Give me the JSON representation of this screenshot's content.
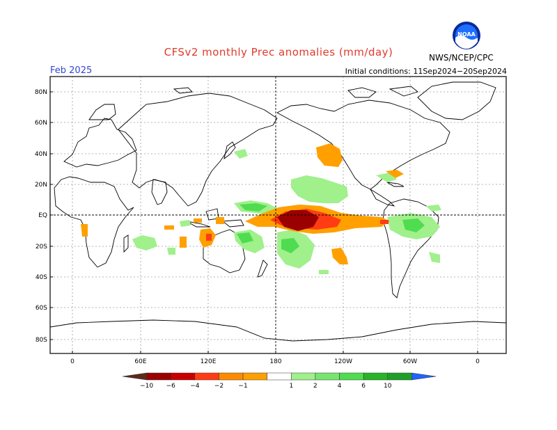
{
  "title": "CFSv2 monthly Prec anomalies (mm/day)",
  "valid_month": "Feb 2025",
  "initial_conditions": "Initial conditions: 11Sep2024−20Sep2024",
  "agency": "NWS/NCEP/CPC",
  "logo": {
    "icon": "noaa-logo",
    "text": "NOAA"
  },
  "colors": {
    "dry_strong": "#9b0000",
    "dry_mod": "#ff3c14",
    "dry_weak": "#ffa000",
    "wet_weak": "#a0f08c",
    "wet_mod": "#50dc50",
    "wet_strong": "#1ea028"
  },
  "lat_labels": [
    "80N",
    "60N",
    "40N",
    "20N",
    "EQ",
    "20S",
    "40S",
    "60S",
    "80S"
  ],
  "lon_labels": [
    "0",
    "60E",
    "120E",
    "180",
    "120W",
    "60W",
    "0"
  ],
  "colorbar": {
    "labels": [
      "−10",
      "−6",
      "−4",
      "−2",
      "−1",
      "1",
      "2",
      "4",
      "6",
      "10"
    ],
    "colors": [
      "#5a2a1e",
      "#9b0000",
      "#c80000",
      "#ff3c14",
      "#ff8c00",
      "#ffa000",
      "#ffffff",
      "#a0f08c",
      "#78e66e",
      "#50dc50",
      "#28b428",
      "#1ea028",
      "#1e64ff"
    ]
  }
}
